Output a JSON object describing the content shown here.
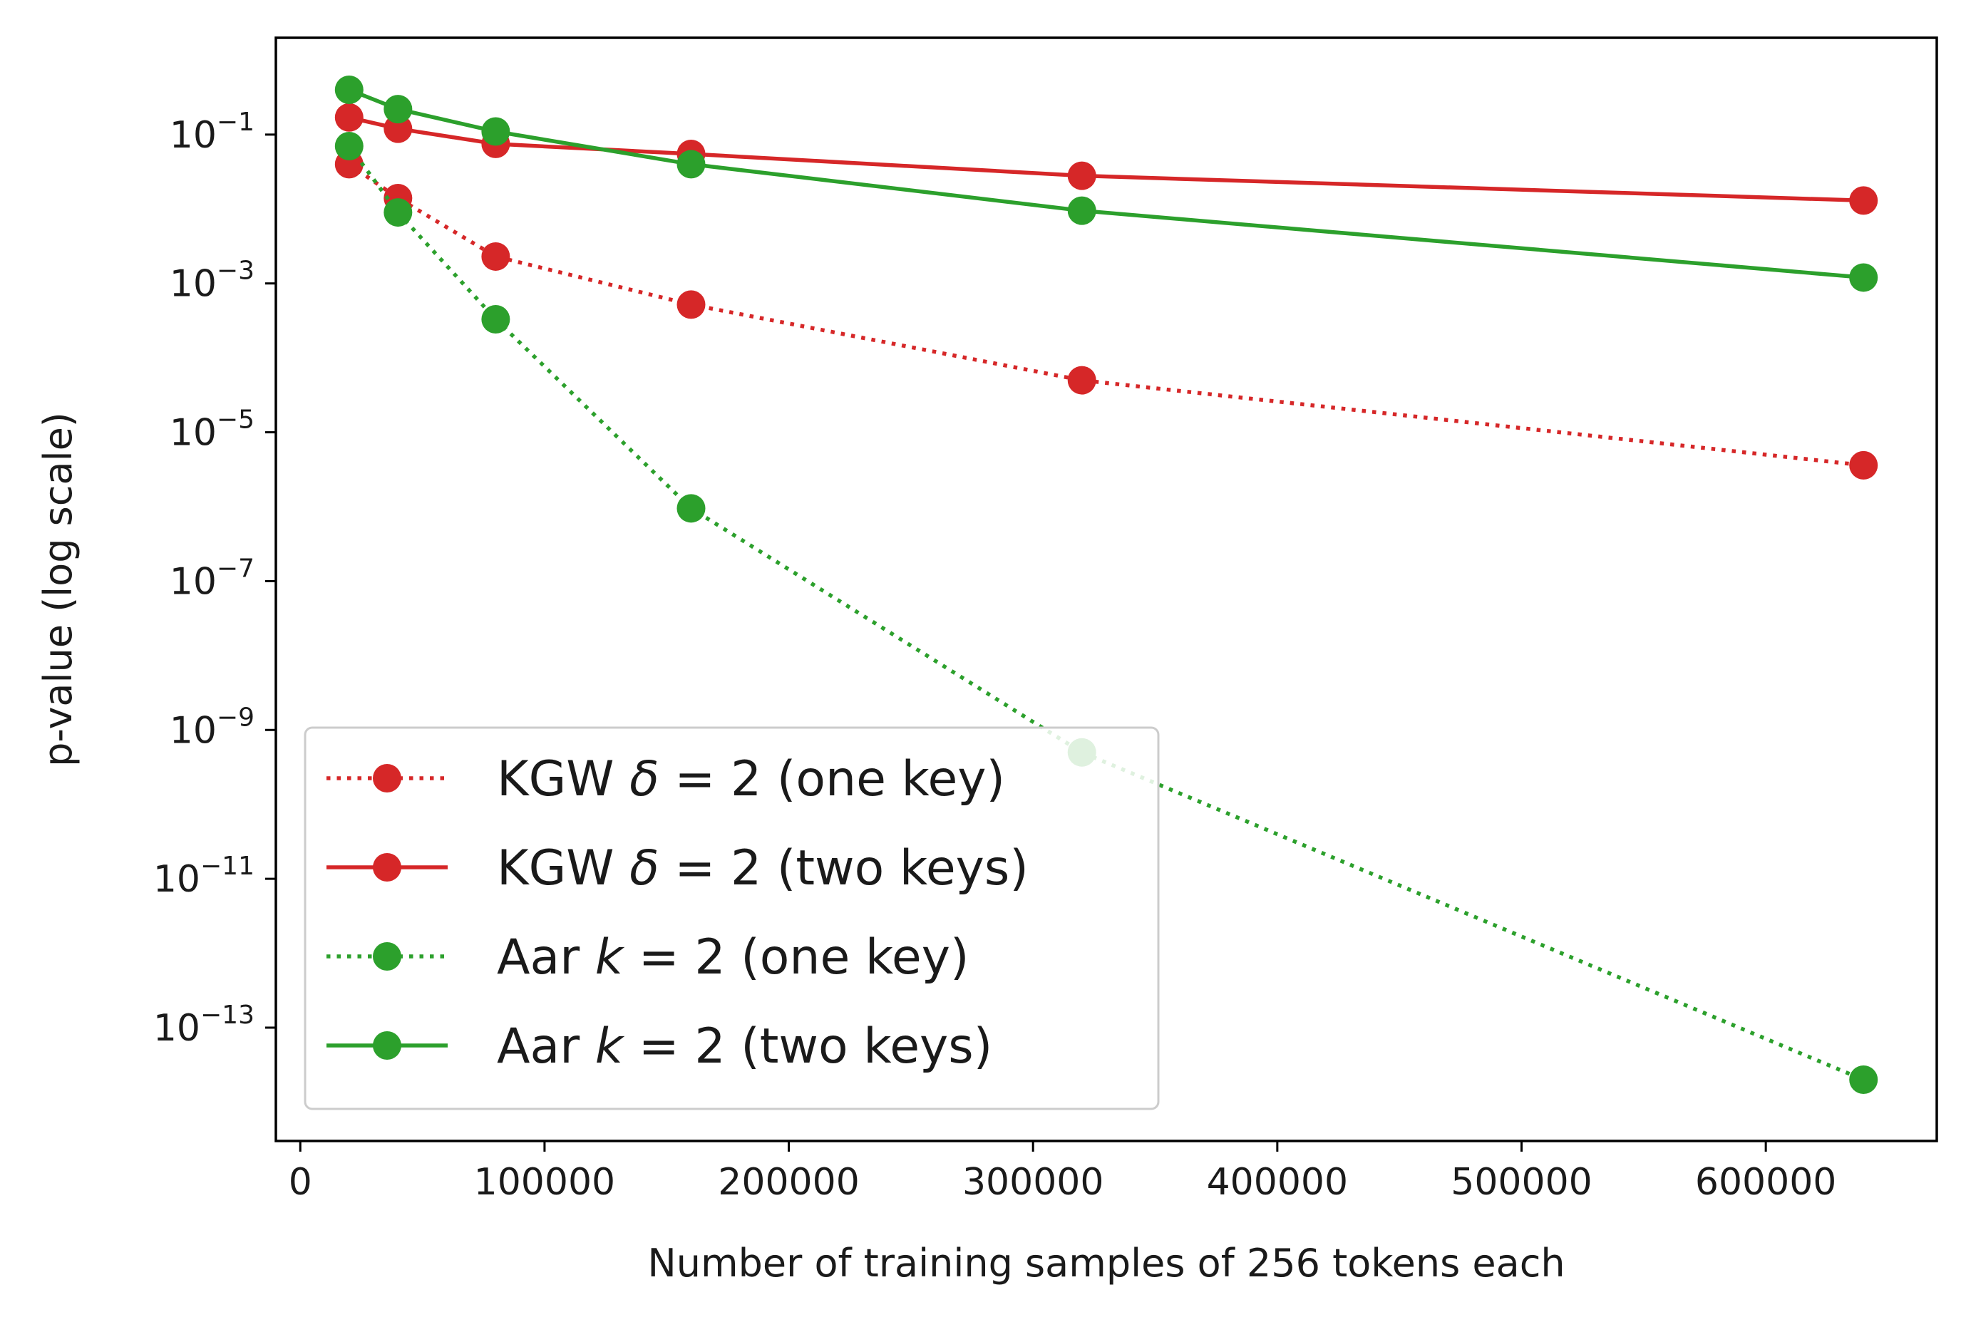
{
  "chart_data": {
    "type": "line",
    "xlabel": "Number of training samples of 256 tokens each",
    "ylabel": "p-value (log scale)",
    "y_scale": "log",
    "xlim": [
      -10000,
      670000
    ],
    "ylim": [
      3e-15,
      2
    ],
    "x_ticks": [
      0,
      100000,
      200000,
      300000,
      400000,
      500000,
      600000
    ],
    "x_tick_labels": [
      "0",
      "100000",
      "200000",
      "300000",
      "400000",
      "500000",
      "600000"
    ],
    "y_ticks": [
      {
        "base": "10",
        "exp": "−1",
        "value": 0.1
      },
      {
        "base": "10",
        "exp": "−3",
        "value": 0.001
      },
      {
        "base": "10",
        "exp": "−5",
        "value": 1e-05
      },
      {
        "base": "10",
        "exp": "−7",
        "value": 1e-07
      },
      {
        "base": "10",
        "exp": "−9",
        "value": 1e-09
      },
      {
        "base": "10",
        "exp": "−11",
        "value": 1e-11
      },
      {
        "base": "10",
        "exp": "−13",
        "value": 1e-13
      }
    ],
    "legend_position": "lower-left",
    "grid": false,
    "series": [
      {
        "name": "KGW δ = 2 (one key)",
        "legend": {
          "prefix": "KGW ",
          "sym": "δ",
          "suffix": " = 2 (one key)"
        },
        "color": "#d62728",
        "line_style": "dotted",
        "x": [
          20000,
          40000,
          80000,
          160000,
          320000,
          640000
        ],
        "y": [
          0.04,
          0.014,
          0.0023,
          0.00052,
          5e-05,
          3.6e-06
        ]
      },
      {
        "name": "KGW δ = 2 (two keys)",
        "legend": {
          "prefix": "KGW ",
          "sym": "δ",
          "suffix": " = 2 (two keys)"
        },
        "color": "#d62728",
        "line_style": "solid",
        "x": [
          20000,
          40000,
          80000,
          160000,
          320000,
          640000
        ],
        "y": [
          0.17,
          0.12,
          0.075,
          0.055,
          0.028,
          0.013
        ]
      },
      {
        "name": "Aar k = 2 (one key)",
        "legend": {
          "prefix": "Aar ",
          "sym": "k",
          "suffix": " = 2 (one key)"
        },
        "color": "#2ca02c",
        "line_style": "dotted",
        "x": [
          20000,
          40000,
          80000,
          160000,
          320000,
          640000
        ],
        "y": [
          0.07,
          0.009,
          0.00033,
          9.5e-07,
          5e-10,
          2e-14
        ]
      },
      {
        "name": "Aar k = 2 (two keys)",
        "legend": {
          "prefix": "Aar ",
          "sym": "k",
          "suffix": " = 2 (two keys)"
        },
        "color": "#2ca02c",
        "line_style": "solid",
        "x": [
          20000,
          40000,
          80000,
          160000,
          320000,
          640000
        ],
        "y": [
          0.4,
          0.22,
          0.11,
          0.04,
          0.0095,
          0.0012
        ]
      }
    ]
  }
}
